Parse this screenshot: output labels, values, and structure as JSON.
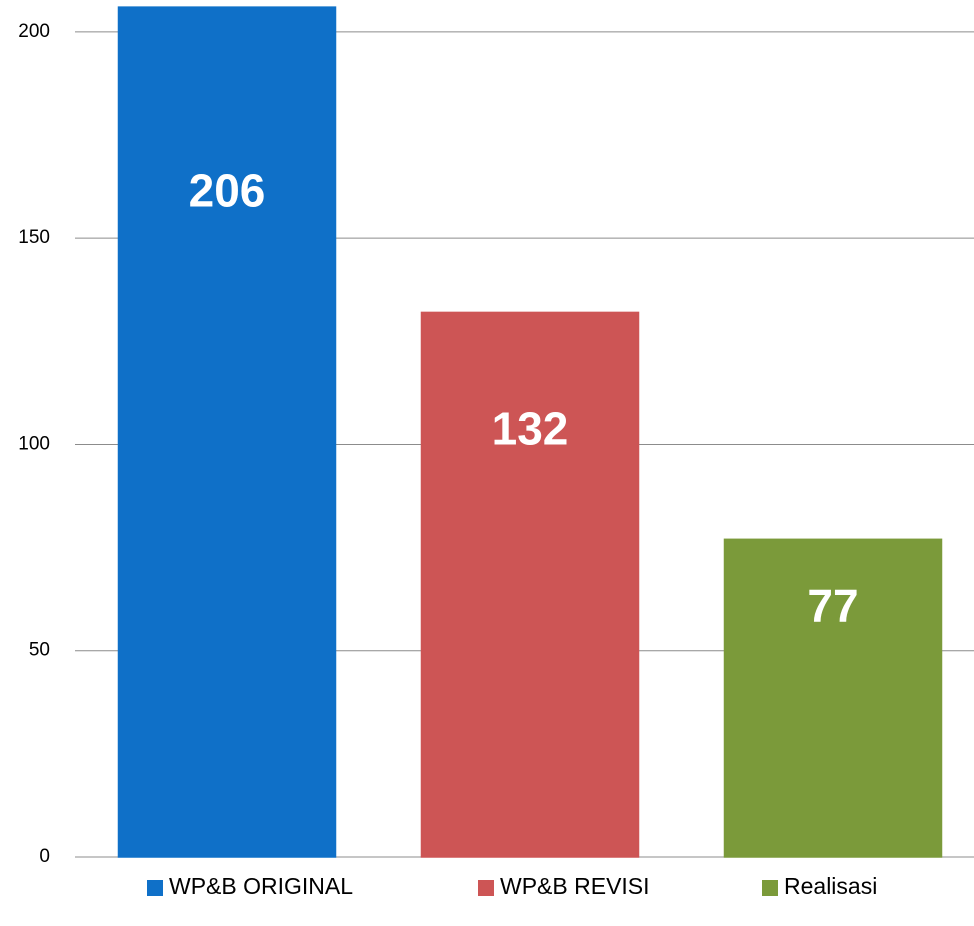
{
  "chart_data": {
    "type": "bar",
    "series": [
      {
        "name": "WP&B ORIGINAL",
        "color": "#0f70c8",
        "values": [
          206
        ]
      },
      {
        "name": "WP&B REVISI",
        "color": "#cd5555",
        "values": [
          132
        ]
      },
      {
        "name": "Realisasi",
        "color": "#7b9a3a",
        "values": [
          77
        ]
      }
    ],
    "ylim": [
      0,
      207
    ],
    "yticks": [
      0,
      50,
      100,
      150,
      200
    ],
    "grid": true,
    "legend": "bottom"
  }
}
